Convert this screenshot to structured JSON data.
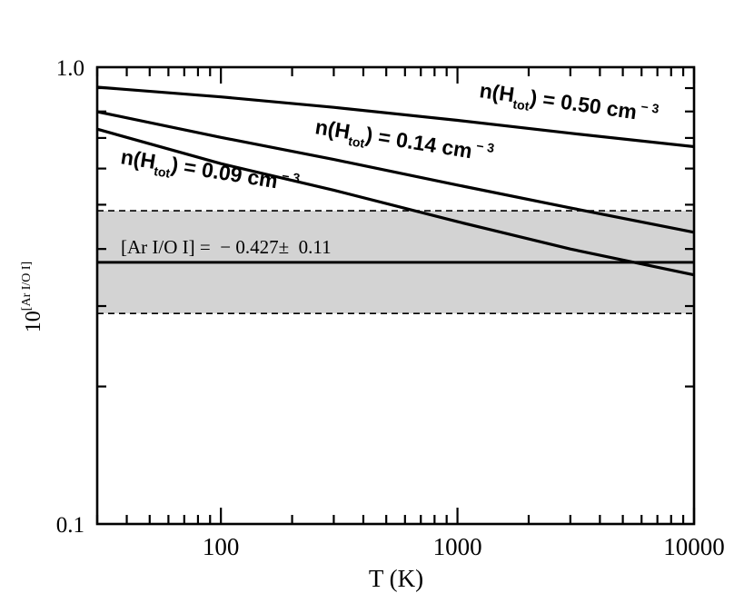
{
  "chart_data": {
    "type": "line",
    "xlabel": "T (K)",
    "ylabel": {
      "base": "10",
      "exponent": "[Ar I/O I]"
    },
    "x_scale": "log",
    "y_scale": "log",
    "xlim": [
      30,
      10000
    ],
    "ylim": [
      0.1,
      1.0
    ],
    "x_ticklabels": [
      {
        "value": 100,
        "label": "100"
      },
      {
        "value": 1000,
        "label": "1000"
      },
      {
        "value": 10000,
        "label": "10000"
      }
    ],
    "y_ticklabels": [
      {
        "value": 0.1,
        "label": "0.1"
      },
      {
        "value": 1.0,
        "label": "1.0"
      }
    ],
    "grid": false,
    "band": {
      "text": "[Ar I/O I] =  − 0.427±  0.11",
      "center": 0.374,
      "lower": 0.289,
      "upper": 0.485,
      "fill": "#d3d3d3"
    },
    "series": [
      {
        "label": {
          "prefix": "n(H",
          "sub": "tot",
          "suffix": ") = 0.50 cm",
          "sup": " − 3"
        },
        "x": [
          30,
          100,
          300,
          1000,
          3000,
          10000
        ],
        "y": [
          0.904,
          0.861,
          0.817,
          0.765,
          0.717,
          0.67
        ]
      },
      {
        "label": {
          "prefix": "n(H",
          "sub": "tot",
          "suffix": ") = 0.14 cm",
          "sup": " − 3"
        },
        "x": [
          30,
          100,
          300,
          1000,
          3000,
          10000
        ],
        "y": [
          0.799,
          0.702,
          0.628,
          0.552,
          0.492,
          0.435
        ]
      },
      {
        "label": {
          "prefix": "n(H",
          "sub": "tot",
          "suffix": ") = 0.09 cm",
          "sup": " − 3"
        },
        "x": [
          30,
          100,
          300,
          1000,
          3000,
          10000
        ],
        "y": [
          0.732,
          0.615,
          0.538,
          0.459,
          0.4,
          0.351
        ]
      }
    ]
  }
}
